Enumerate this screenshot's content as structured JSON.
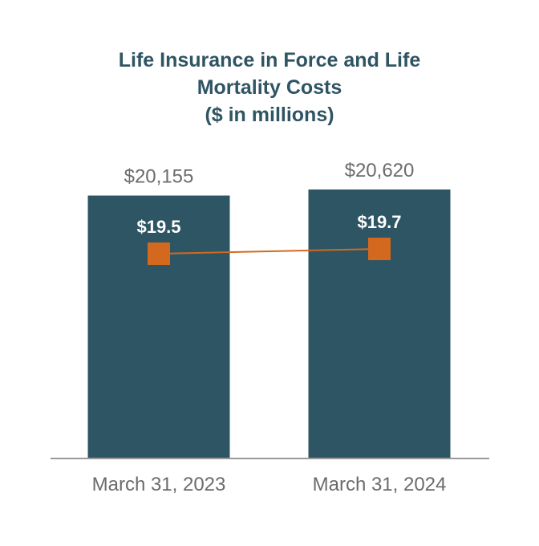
{
  "chart_data": {
    "type": "bar",
    "title_lines": [
      "Life Insurance in Force and Life",
      "Mortality Costs",
      "($ in millions)"
    ],
    "categories": [
      "March 31, 2023",
      "March 31, 2024"
    ],
    "series": [
      {
        "values": [
          20155,
          20620
        ],
        "labels": [
          "$20,155",
          "$20,620"
        ],
        "color": "#2e5564",
        "kind": "bar"
      },
      {
        "values": [
          19.5,
          19.7
        ],
        "labels": [
          "$19.5",
          "$19.7"
        ],
        "color": "#d2691e",
        "kind": "line"
      }
    ],
    "legend": "none",
    "grid": false
  }
}
